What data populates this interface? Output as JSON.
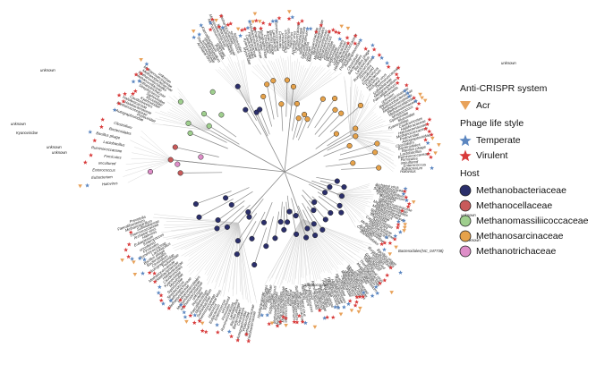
{
  "legend": {
    "acr_heading": "Anti-CRISPR system",
    "acr_label": "Acr",
    "lifestyle_heading": "Phage life style",
    "temperate_label": "Temperate",
    "virulent_label": "Virulent",
    "host_heading": "Host",
    "hosts": [
      {
        "label": "Methanobacteriaceae",
        "color": "#2b2f6b"
      },
      {
        "label": "Methanocellaceae",
        "color": "#c85a5a"
      },
      {
        "label": "Methanomassiliicoccaceae",
        "color": "#9fcf8e"
      },
      {
        "label": "Methanosarcinaceae",
        "color": "#e6a24a"
      },
      {
        "label": "Methanotrichaceae",
        "color": "#de8ec8"
      }
    ]
  },
  "colors": {
    "acr": "#e8a25a",
    "temperate": "#5b86c0",
    "virulent": "#d83a3a",
    "branch": "#8a8a8a",
    "branch_light": "#c8c8c8"
  },
  "tip_labels": [
    "unknown",
    "Methanosarcinaceae",
    "Methanobacteriaceae",
    "Methanomicrobiales",
    "Methanocellaceae",
    "Methanotrichaceae",
    "Streptococcus",
    "Siphoviridae",
    "Myoviridae",
    "Kyanoviridae",
    "Caudoviricetes",
    "Haloferacaceae",
    "Halobacteriaceae",
    "Methanococcaceae",
    "Podoviridae",
    "Autographiviridae",
    "Clostridium",
    "Bacteroidales",
    "Bacillus phage",
    "Lactobacillus",
    "Ruminococcaceae",
    "Firmicutes",
    "uncultured",
    "Enterococcus",
    "Eubacterium",
    "Halovirus",
    "Archaeal virus",
    "Thermococcaceae",
    "Sulfolobaceae",
    "Methanospirillum",
    "Faecalibacterium",
    "Prevotella"
  ],
  "named_labels": [
    {
      "text": "unknown"
    },
    {
      "text": "unknown"
    },
    {
      "text": "unknown"
    },
    {
      "text": "unknown"
    },
    {
      "text": "Kyanoviridae"
    },
    {
      "text": "unknown"
    },
    {
      "text": "unknown"
    },
    {
      "text": "unknown"
    },
    {
      "text": "Streptococcus"
    },
    {
      "text": "Bacteroidales(NC_047738)"
    }
  ]
}
